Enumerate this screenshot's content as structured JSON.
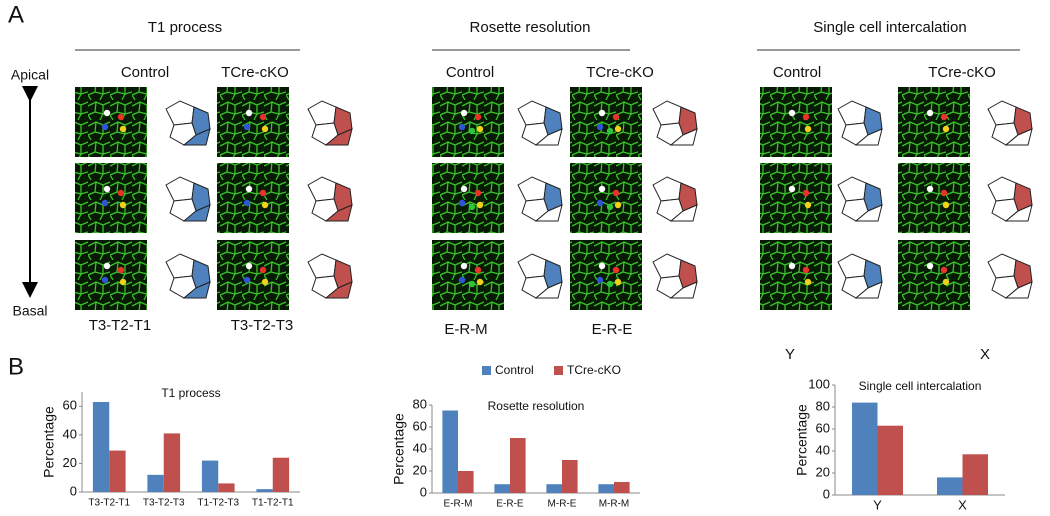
{
  "panel_a": {
    "label": "A",
    "side_top": "Apical",
    "side_bottom": "Basal",
    "groups": [
      {
        "title": "T1 process",
        "conditions": [
          "Control",
          "TCre-cKO"
        ],
        "patterns": [
          "T3-T2-T1",
          "T3-T2-T3"
        ]
      },
      {
        "title": "Rosette resolution",
        "conditions": [
          "Control",
          "TCre-cKO"
        ],
        "patterns": [
          "E-R-M",
          "E-R-E"
        ]
      },
      {
        "title": "Single cell intercalation",
        "conditions": [
          "Control",
          "TCre-cKO"
        ],
        "patterns": [
          "Y",
          "X"
        ]
      }
    ]
  },
  "panel_b": {
    "label": "B"
  },
  "chart_data": [
    {
      "type": "bar",
      "title": "T1 process",
      "y_label": "Percentage",
      "categories": [
        "T3-T2-T1",
        "T3-T2-T3",
        "T1-T2-T3",
        "T1-T2-T1"
      ],
      "series": [
        {
          "color": "#4f81bd",
          "values": [
            63,
            12,
            22,
            2
          ]
        },
        {
          "color": "#c0504d",
          "values": [
            29,
            41,
            6,
            24
          ]
        }
      ],
      "ylim": [
        0,
        70
      ],
      "yticks": [
        0,
        20,
        40,
        60
      ]
    },
    {
      "type": "bar",
      "title": "Rosette resolution",
      "y_label": "Percentage",
      "categories": [
        "E-R-M",
        "E-R-E",
        "M-R-E",
        "M-R-M"
      ],
      "series": [
        {
          "name": "Control",
          "color": "#4f81bd",
          "values": [
            75,
            8,
            8,
            8
          ]
        },
        {
          "name": "TCre-cKO",
          "color": "#c0504d",
          "values": [
            20,
            50,
            30,
            10
          ]
        }
      ],
      "ylim": [
        0,
        80
      ],
      "yticks": [
        0,
        20,
        40,
        60,
        80
      ]
    },
    {
      "type": "bar",
      "title": "Single cell intercalation",
      "y_label": "Percentage",
      "categories": [
        "Y",
        "X"
      ],
      "series": [
        {
          "color": "#4f81bd",
          "values": [
            84,
            16
          ]
        },
        {
          "color": "#c0504d",
          "values": [
            63,
            37
          ]
        }
      ],
      "ylim": [
        0,
        100
      ],
      "yticks": [
        0,
        20,
        40,
        60,
        80,
        100
      ]
    }
  ]
}
